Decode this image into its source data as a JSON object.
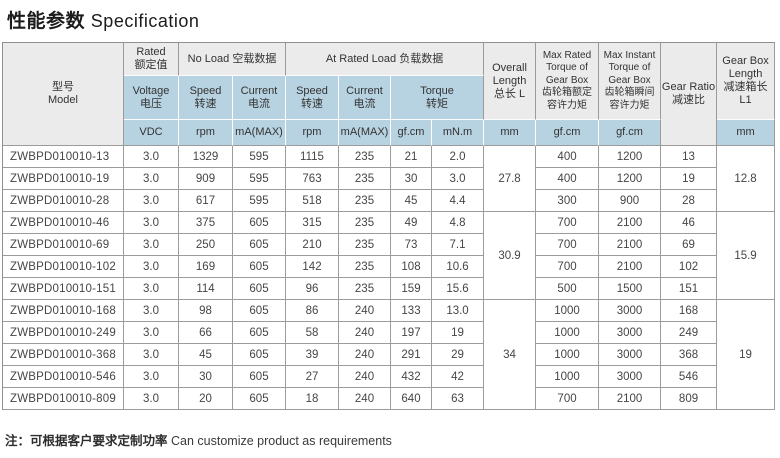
{
  "page": {
    "title_zh": "性能参数",
    "title_en": "Specification",
    "note_zh": "注：可根据客户要求定制功率",
    "note_en": "Can customize product as requirements"
  },
  "colors": {
    "header_gray": "#ebebeb",
    "header_blue": "#b7d2e0",
    "grid_line": "#9b9b9b",
    "white_line": "#fdfdfd"
  },
  "table": {
    "header": {
      "model": "型号\nModel",
      "rated": "Rated\n额定值",
      "no_load": "No Load 空载数据",
      "at_rated_load": "At Rated Load 负载数据",
      "voltage": "Voltage\n电压",
      "speed": "Speed\n转速",
      "current": "Current\n电流",
      "torque": "Torque\n转矩",
      "overall_length": "Overall\nLength\n总长 L",
      "max_rated_torque": "Max Rated\nTorque of\nGear Box\n齿轮箱额定\n容许力矩",
      "max_instant_torque": "Max Instant\nTorque of\nGear Box\n齿轮箱瞬间\n容许力矩",
      "gear_ratio": "Gear Ratio\n减速比",
      "gear_box_length": "Gear Box\nLength\n减速箱长\nL1",
      "unit_vdc": "VDC",
      "unit_rpm": "rpm",
      "unit_ma": "mA(MAX)",
      "unit_gfcm": "gf.cm",
      "unit_mnm": "mN.m",
      "unit_mm": "mm"
    },
    "rows": [
      {
        "model": "ZWBPD010010-13",
        "voltage": "3.0",
        "no_load_speed": "1329",
        "no_load_current": "595",
        "load_speed": "1115",
        "load_current": "235",
        "torque_gfcm": "21",
        "torque_mnm": "2.0",
        "max_rated_torque": "400",
        "max_instant_torque": "1200",
        "gear_ratio": "13"
      },
      {
        "model": "ZWBPD010010-19",
        "voltage": "3.0",
        "no_load_speed": "909",
        "no_load_current": "595",
        "load_speed": "763",
        "load_current": "235",
        "torque_gfcm": "30",
        "torque_mnm": "3.0",
        "max_rated_torque": "400",
        "max_instant_torque": "1200",
        "gear_ratio": "19"
      },
      {
        "model": "ZWBPD010010-28",
        "voltage": "3.0",
        "no_load_speed": "617",
        "no_load_current": "595",
        "load_speed": "518",
        "load_current": "235",
        "torque_gfcm": "45",
        "torque_mnm": "4.4",
        "max_rated_torque": "300",
        "max_instant_torque": "900",
        "gear_ratio": "28"
      },
      {
        "model": "ZWBPD010010-46",
        "voltage": "3.0",
        "no_load_speed": "375",
        "no_load_current": "605",
        "load_speed": "315",
        "load_current": "235",
        "torque_gfcm": "49",
        "torque_mnm": "4.8",
        "max_rated_torque": "700",
        "max_instant_torque": "2100",
        "gear_ratio": "46"
      },
      {
        "model": "ZWBPD010010-69",
        "voltage": "3.0",
        "no_load_speed": "250",
        "no_load_current": "605",
        "load_speed": "210",
        "load_current": "235",
        "torque_gfcm": "73",
        "torque_mnm": "7.1",
        "max_rated_torque": "700",
        "max_instant_torque": "2100",
        "gear_ratio": "69"
      },
      {
        "model": "ZWBPD010010-102",
        "voltage": "3.0",
        "no_load_speed": "169",
        "no_load_current": "605",
        "load_speed": "142",
        "load_current": "235",
        "torque_gfcm": "108",
        "torque_mnm": "10.6",
        "max_rated_torque": "700",
        "max_instant_torque": "2100",
        "gear_ratio": "102"
      },
      {
        "model": "ZWBPD010010-151",
        "voltage": "3.0",
        "no_load_speed": "114",
        "no_load_current": "605",
        "load_speed": "96",
        "load_current": "235",
        "torque_gfcm": "159",
        "torque_mnm": "15.6",
        "max_rated_torque": "500",
        "max_instant_torque": "1500",
        "gear_ratio": "151"
      },
      {
        "model": "ZWBPD010010-168",
        "voltage": "3.0",
        "no_load_speed": "98",
        "no_load_current": "605",
        "load_speed": "86",
        "load_current": "240",
        "torque_gfcm": "133",
        "torque_mnm": "13.0",
        "max_rated_torque": "1000",
        "max_instant_torque": "3000",
        "gear_ratio": "168"
      },
      {
        "model": "ZWBPD010010-249",
        "voltage": "3.0",
        "no_load_speed": "66",
        "no_load_current": "605",
        "load_speed": "58",
        "load_current": "240",
        "torque_gfcm": "197",
        "torque_mnm": "19",
        "max_rated_torque": "1000",
        "max_instant_torque": "3000",
        "gear_ratio": "249"
      },
      {
        "model": "ZWBPD010010-368",
        "voltage": "3.0",
        "no_load_speed": "45",
        "no_load_current": "605",
        "load_speed": "39",
        "load_current": "240",
        "torque_gfcm": "291",
        "torque_mnm": "29",
        "max_rated_torque": "1000",
        "max_instant_torque": "3000",
        "gear_ratio": "368"
      },
      {
        "model": "ZWBPD010010-546",
        "voltage": "3.0",
        "no_load_speed": "30",
        "no_load_current": "605",
        "load_speed": "27",
        "load_current": "240",
        "torque_gfcm": "432",
        "torque_mnm": "42",
        "max_rated_torque": "1000",
        "max_instant_torque": "3000",
        "gear_ratio": "546"
      },
      {
        "model": "ZWBPD010010-809",
        "voltage": "3.0",
        "no_load_speed": "20",
        "no_load_current": "605",
        "load_speed": "18",
        "load_current": "240",
        "torque_gfcm": "640",
        "torque_mnm": "63",
        "max_rated_torque": "700",
        "max_instant_torque": "2100",
        "gear_ratio": "809"
      }
    ],
    "overall_length_groups": [
      {
        "start": 0,
        "span": 3,
        "value": "27.8"
      },
      {
        "start": 3,
        "span": 4,
        "value": "30.9"
      },
      {
        "start": 7,
        "span": 5,
        "value": "34"
      }
    ],
    "gear_box_length_groups": [
      {
        "start": 0,
        "span": 3,
        "value": "12.8"
      },
      {
        "start": 3,
        "span": 4,
        "value": "15.9"
      },
      {
        "start": 7,
        "span": 5,
        "value": "19"
      }
    ]
  }
}
